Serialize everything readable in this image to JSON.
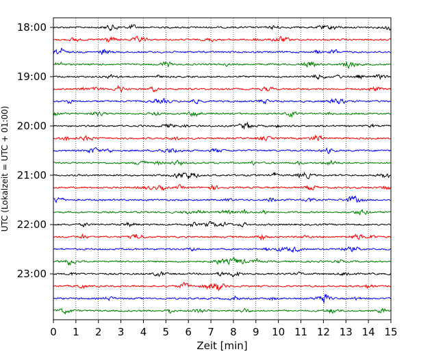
{
  "chart_data": {
    "type": "line",
    "title": "",
    "xlabel": "Zeit  [min]",
    "ylabel": "UTC (Lokalzeit = UTC + 01:00)",
    "xlim": [
      0,
      15
    ],
    "x_ticks": [
      "0",
      "1",
      "2",
      "3",
      "4",
      "5",
      "6",
      "7",
      "8",
      "9",
      "10",
      "11",
      "12",
      "13",
      "14",
      "15"
    ],
    "y_tick_labels": [
      "18:00",
      "19:00",
      "20:00",
      "21:00",
      "22:00",
      "23:00"
    ],
    "trace_count": 24,
    "trace_interval_minutes": 15,
    "first_trace": "18:00",
    "last_trace": "23:45",
    "trace_colors": [
      "#000000",
      "#ff0000",
      "#0000ff",
      "#008000"
    ],
    "grid": "vertical dotted at each minute",
    "series": []
  }
}
